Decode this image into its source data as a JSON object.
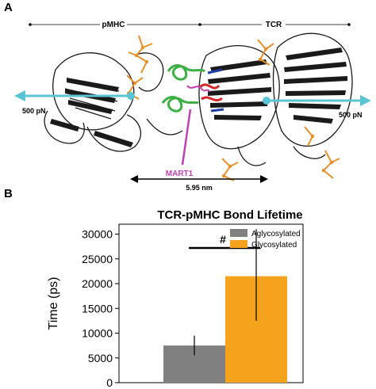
{
  "panel_a": {
    "label": "A",
    "bracket_left": "pMHC",
    "bracket_right": "TCR",
    "force_left": "500 pN",
    "force_right": "500 pN",
    "peptide": "MART1",
    "distance": "5.95 nm",
    "colors": {
      "arrow": "#5bc4d4",
      "protein": "#1a1a1a",
      "glycans": "#e8912a",
      "mhc_helix": "#3cb043",
      "peptide": "#c040b0",
      "cdr_red": "#d62728",
      "cdr_blue": "#1f3fa8"
    }
  },
  "panel_b": {
    "label": "B"
  },
  "chart_data": {
    "type": "bar",
    "title": "TCR-pMHC Bond Lifetime",
    "xlabel": "",
    "ylabel": "Time (ps)",
    "ylim": [
      0,
      32000
    ],
    "yticks": [
      "0",
      "5000",
      "10000",
      "15000",
      "20000",
      "25000",
      "30000"
    ],
    "series": [
      {
        "name": "Aglycosylated",
        "value": 7500,
        "err_low": 5500,
        "err_high": 9500,
        "color": "#808080"
      },
      {
        "name": "Glycosylated",
        "value": 21500,
        "err_low": 12500,
        "err_high": 31000,
        "color": "#f5a21c"
      }
    ],
    "significance": "#",
    "legend": "top-right"
  }
}
